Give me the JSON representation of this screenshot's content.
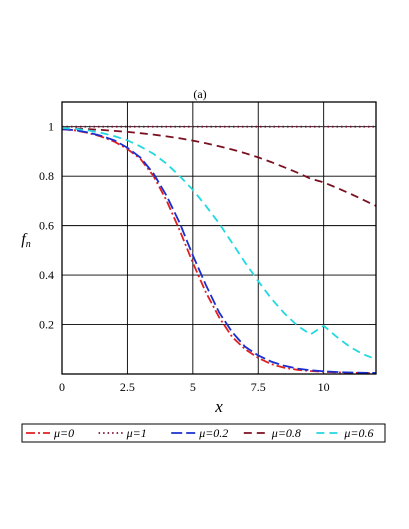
{
  "chart_data": {
    "type": "line",
    "title": "(a)",
    "xlabel": "x",
    "ylabel": "f",
    "ylabel_sub": "n",
    "xlim": [
      0,
      12
    ],
    "ylim": [
      0,
      1.1
    ],
    "xticks": [
      0,
      2.5,
      5,
      7.5,
      10
    ],
    "xtick_labels": [
      "0",
      "2.5",
      "5",
      "7.5",
      "10"
    ],
    "yticks": [
      0.2,
      0.4,
      0.6,
      0.8,
      1
    ],
    "ytick_labels": [
      "0.2",
      "0.4",
      "0.6",
      "0.8",
      "1"
    ],
    "grid": true,
    "legend_position": "bottom",
    "x": [
      0,
      0.5,
      1,
      1.5,
      2,
      2.5,
      3,
      3.5,
      4,
      4.5,
      5,
      5.5,
      6,
      6.5,
      7,
      7.5,
      8,
      8.5,
      9,
      9.5,
      10,
      10.5,
      11,
      11.5,
      12
    ],
    "series": [
      {
        "name": "μ=0",
        "color": "#e02020",
        "dash": "dashdot",
        "values": [
          0.99,
          0.985,
          0.975,
          0.96,
          0.94,
          0.91,
          0.87,
          0.8,
          0.7,
          0.58,
          0.45,
          0.33,
          0.23,
          0.15,
          0.1,
          0.065,
          0.04,
          0.025,
          0.017,
          0.012,
          0.009,
          0.007,
          0.005,
          0.004,
          0.003
        ]
      },
      {
        "name": "μ=1",
        "color": "#7a1030",
        "dash": "dotted",
        "values": [
          1,
          1,
          1,
          1,
          1,
          1,
          1,
          1,
          1,
          1,
          1,
          1,
          1,
          1,
          1,
          1,
          1,
          1,
          1,
          1,
          1,
          1,
          1,
          1,
          1
        ]
      },
      {
        "name": "μ=0.2",
        "color": "#1a2fd0",
        "dash": "longdash",
        "values": [
          0.99,
          0.986,
          0.977,
          0.963,
          0.945,
          0.915,
          0.875,
          0.81,
          0.72,
          0.61,
          0.48,
          0.36,
          0.25,
          0.17,
          0.11,
          0.075,
          0.05,
          0.033,
          0.022,
          0.015,
          0.011,
          0.008,
          0.006,
          0.005,
          0.004
        ]
      },
      {
        "name": "μ=0.8",
        "color": "#7a1020",
        "dash": "dashed",
        "values": [
          0.995,
          0.993,
          0.99,
          0.987,
          0.983,
          0.979,
          0.974,
          0.968,
          0.961,
          0.953,
          0.944,
          0.933,
          0.921,
          0.908,
          0.893,
          0.876,
          0.857,
          0.836,
          0.814,
          0.79,
          0.775,
          0.753,
          0.73,
          0.705,
          0.68
        ]
      },
      {
        "name": "μ=0.6",
        "color": "#22d8e0",
        "dash": "dashed",
        "values": [
          0.995,
          0.992,
          0.985,
          0.975,
          0.962,
          0.945,
          0.92,
          0.89,
          0.85,
          0.8,
          0.745,
          0.68,
          0.61,
          0.53,
          0.45,
          0.375,
          0.305,
          0.245,
          0.195,
          0.16,
          0.195,
          0.15,
          0.11,
          0.08,
          0.06
        ]
      }
    ]
  }
}
